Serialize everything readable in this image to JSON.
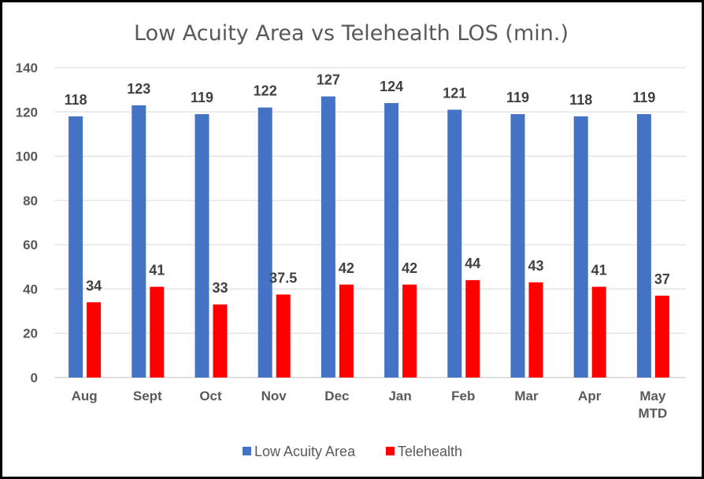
{
  "chart_data": {
    "type": "bar",
    "title": "Low Acuity Area vs Telehealth LOS (min.)",
    "xlabel": "",
    "ylabel": "",
    "categories": [
      [
        "Aug"
      ],
      [
        "Sept"
      ],
      [
        "Oct"
      ],
      [
        "Nov"
      ],
      [
        "Dec"
      ],
      [
        "Jan"
      ],
      [
        "Feb"
      ],
      [
        "Mar"
      ],
      [
        "Apr"
      ],
      [
        "May",
        "MTD"
      ]
    ],
    "series": [
      {
        "name": "Low Acuity Area",
        "color": "#4472c4",
        "values": [
          118,
          123,
          119,
          122,
          127,
          124,
          121,
          119,
          118,
          119
        ],
        "labels": [
          "118",
          "123",
          "119",
          "122",
          "127",
          "124",
          "121",
          "119",
          "118",
          "119"
        ]
      },
      {
        "name": "Telehealth",
        "color": "#ff0000",
        "values": [
          34,
          41,
          33,
          37.5,
          42,
          42,
          44,
          43,
          41,
          37
        ],
        "labels": [
          "34",
          "41",
          "33",
          "37.5",
          "42",
          "42",
          "44",
          "43",
          "41",
          "37"
        ]
      }
    ],
    "ylim": [
      0,
      140
    ],
    "yticks": [
      0,
      20,
      40,
      60,
      80,
      100,
      120,
      140
    ],
    "grid": true,
    "legend": "bottom"
  }
}
